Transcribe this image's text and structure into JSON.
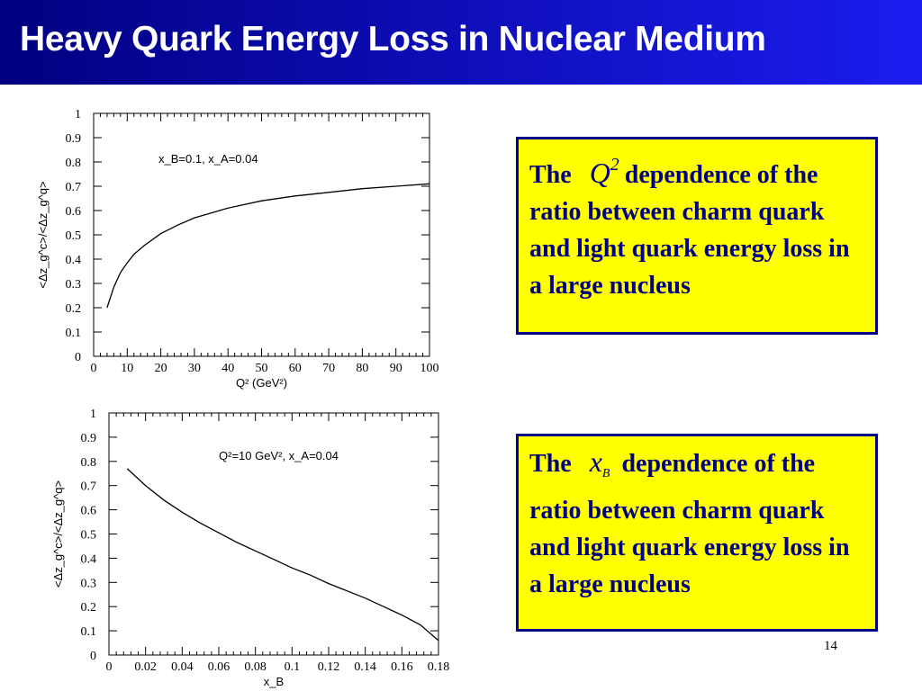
{
  "slide": {
    "title": "Heavy Quark Energy Loss in Nuclear Medium",
    "page_number": "14"
  },
  "notes": [
    {
      "prefix": "The",
      "symbol": "Q",
      "symbol_sup": "2",
      "symbol_sub": "",
      "text": "dependence of the ratio between charm quark and light quark energy loss in a large nucleus"
    },
    {
      "prefix": "The",
      "symbol": "x",
      "symbol_sup": "",
      "symbol_sub": "B",
      "text": "dependence of the ratio between charm quark and light quark energy loss in a large nucleus"
    }
  ],
  "colors": {
    "title_bar": "#0a0aa8",
    "note_fill": "#ffff00",
    "note_border": "#00008b",
    "note_text": "#000080",
    "curve": "#000000"
  },
  "chart_data": [
    {
      "type": "line",
      "xlabel": "Q² (GeV²)",
      "ylabel": "<Δz_g^c>/<Δz_g^q>",
      "annotation": "x_B=0.1, x_A=0.04",
      "xlim": [
        0,
        100
      ],
      "ylim": [
        0,
        1
      ],
      "x_ticks": [
        "0",
        "10",
        "20",
        "30",
        "40",
        "50",
        "60",
        "70",
        "80",
        "90",
        "100"
      ],
      "y_ticks": [
        "0",
        "0.1",
        "0.2",
        "0.3",
        "0.4",
        "0.5",
        "0.6",
        "0.7",
        "0.8",
        "0.9",
        "1"
      ],
      "series": [
        {
          "x": [
            4,
            6,
            8,
            10,
            12,
            15,
            20,
            25,
            30,
            35,
            40,
            50,
            60,
            70,
            80,
            90,
            100
          ],
          "values": [
            0.2,
            0.285,
            0.345,
            0.385,
            0.42,
            0.455,
            0.505,
            0.54,
            0.57,
            0.59,
            0.61,
            0.64,
            0.66,
            0.675,
            0.69,
            0.7,
            0.71
          ]
        }
      ]
    },
    {
      "type": "line",
      "xlabel": "x_B",
      "ylabel": "<Δz_g^c>/<Δz_g^q>",
      "annotation": "Q²=10 GeV², x_A=0.04",
      "xlim": [
        0,
        0.18
      ],
      "ylim": [
        0,
        1
      ],
      "x_ticks": [
        "0",
        "0.02",
        "0.04",
        "0.06",
        "0.08",
        "0.1",
        "0.12",
        "0.14",
        "0.16",
        "0.18"
      ],
      "y_ticks": [
        "0",
        "0.1",
        "0.2",
        "0.3",
        "0.4",
        "0.5",
        "0.6",
        "0.7",
        "0.8",
        "0.9",
        "1"
      ],
      "series": [
        {
          "x": [
            0.01,
            0.02,
            0.03,
            0.04,
            0.05,
            0.06,
            0.07,
            0.08,
            0.09,
            0.1,
            0.11,
            0.12,
            0.13,
            0.14,
            0.15,
            0.16,
            0.17,
            0.18
          ],
          "values": [
            0.77,
            0.7,
            0.64,
            0.59,
            0.545,
            0.505,
            0.465,
            0.43,
            0.395,
            0.36,
            0.33,
            0.295,
            0.265,
            0.235,
            0.2,
            0.165,
            0.125,
            0.06
          ]
        }
      ]
    }
  ]
}
